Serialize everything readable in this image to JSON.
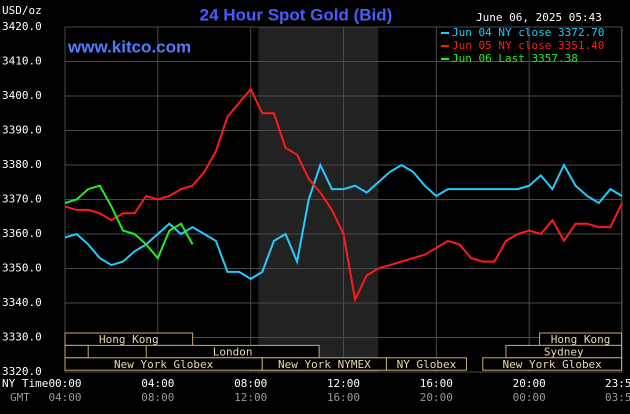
{
  "chart_data": {
    "type": "line",
    "title": "24 Hour Spot Gold (Bid)",
    "y_label": "USD/oz",
    "timestamp": "June 06, 2025 05:43",
    "watermark": "www.kitco.com",
    "x_axis_label": "NY Time",
    "x2_axis_label": "GMT",
    "x": [
      0,
      0.5,
      1,
      1.5,
      2,
      2.5,
      3,
      3.5,
      4,
      4.5,
      5,
      5.5,
      6,
      6.5,
      7,
      7.5,
      8,
      8.5,
      9,
      9.5,
      10,
      10.5,
      11,
      11.5,
      12,
      12.5,
      13,
      13.5,
      14,
      14.5,
      15,
      15.5,
      16,
      16.5,
      17,
      17.5,
      18,
      18.5,
      19,
      19.5,
      20,
      20.5,
      21,
      21.5,
      22,
      22.5,
      23,
      23.5,
      24
    ],
    "series": [
      {
        "name": "Jun 04 NY close 3372.70",
        "color": "#22ccff",
        "values": [
          3359,
          3360,
          3357,
          3353,
          3351,
          3352,
          3355,
          3357,
          3360,
          3363,
          3360,
          3362,
          3360,
          3358,
          3349,
          3349,
          3347,
          3349,
          3358,
          3360,
          3352,
          3370,
          3380,
          3373,
          3373,
          3374,
          3372,
          3375,
          3378,
          3380,
          3378,
          3374,
          3371,
          3373,
          3373,
          3373,
          3373,
          3373,
          3373,
          3373,
          3374,
          3377,
          3373,
          3380,
          3374,
          3371,
          3369,
          3373,
          3371
        ]
      },
      {
        "name": "Jun 05 NY close 3351.40",
        "color": "#ff1a1a",
        "values": [
          3368,
          3367,
          3367,
          3366,
          3364,
          3366,
          3366,
          3371,
          3370,
          3371,
          3373,
          3374,
          3378,
          3384,
          3394,
          3398,
          3402,
          3395,
          3395,
          3385,
          3383,
          3376,
          3372,
          3367,
          3360,
          3341,
          3348,
          3350,
          3351,
          3352,
          3353,
          3354,
          3356,
          3358,
          3357,
          3353,
          3352,
          3352,
          3358,
          3360,
          3361,
          3360,
          3364,
          3358,
          3363,
          3363,
          3362,
          3362,
          3369
        ]
      },
      {
        "name": "Jun 06 Last 3357.38",
        "color": "#22ee22",
        "values": [
          3369,
          3370,
          3373,
          3374,
          3368,
          3361,
          3360,
          3357,
          3353,
          3361,
          3363,
          3357,
          null,
          null,
          null,
          null,
          null,
          null,
          null,
          null,
          null,
          null,
          null,
          null,
          null,
          null,
          null,
          null,
          null,
          null,
          null,
          null,
          null,
          null,
          null,
          null,
          null,
          null,
          null,
          null,
          null,
          null,
          null,
          null,
          null,
          null,
          null,
          null,
          null
        ]
      }
    ],
    "xlim": [
      0,
      24
    ],
    "xticks": [
      {
        "value": 0,
        "label": "00:00"
      },
      {
        "value": 4,
        "label": "04:00"
      },
      {
        "value": 8,
        "label": "08:00"
      },
      {
        "value": 12,
        "label": "12:00"
      },
      {
        "value": 16,
        "label": "16:00"
      },
      {
        "value": 20,
        "label": "20:00"
      },
      {
        "value": 23.98,
        "label": "23:59"
      }
    ],
    "x2ticks": [
      {
        "value": 0,
        "label": "04:00"
      },
      {
        "value": 4,
        "label": "08:00"
      },
      {
        "value": 8,
        "label": "12:00"
      },
      {
        "value": 12,
        "label": "16:00"
      },
      {
        "value": 16,
        "label": "20:00"
      },
      {
        "value": 20,
        "label": "00:00"
      },
      {
        "value": 23.98,
        "label": "03:59"
      }
    ],
    "ylim": [
      3320,
      3420
    ],
    "yticks": [
      {
        "value": 3320,
        "label": "3320.0"
      },
      {
        "value": 3330,
        "label": "3330.0"
      },
      {
        "value": 3340,
        "label": "3340.0"
      },
      {
        "value": 3350,
        "label": "3350.0"
      },
      {
        "value": 3360,
        "label": "3360.0"
      },
      {
        "value": 3370,
        "label": "3370.0"
      },
      {
        "value": 3380,
        "label": "3380.0"
      },
      {
        "value": 3390,
        "label": "3390.0"
      },
      {
        "value": 3400,
        "label": "3400.0"
      },
      {
        "value": 3410,
        "label": "3410.0"
      },
      {
        "value": 3420,
        "label": "3420.0"
      }
    ],
    "grid": true,
    "shaded_session": [
      8.33,
      13.5
    ],
    "sessions": [
      [
        {
          "label": "Hong Kong",
          "start": 0,
          "end": 5.5
        },
        {
          "label": "Hong Kong",
          "start": 20.45,
          "end": 23.98
        }
      ],
      [
        {
          "label": null,
          "start": 0,
          "end": 1
        },
        {
          "label": "London",
          "start": 3.5,
          "end": 10.95
        },
        {
          "label": "Sydney",
          "start": 19,
          "end": 23.98
        }
      ],
      [
        {
          "label": "New York Globex",
          "start": 0,
          "end": 8.5
        },
        {
          "label": "New York NYMEX",
          "start": 8.5,
          "end": 13.85
        },
        {
          "label": "NY Globex",
          "start": 13.85,
          "end": 17.3
        },
        {
          "label": "New York Globex",
          "start": 18,
          "end": 23.98
        }
      ]
    ]
  }
}
